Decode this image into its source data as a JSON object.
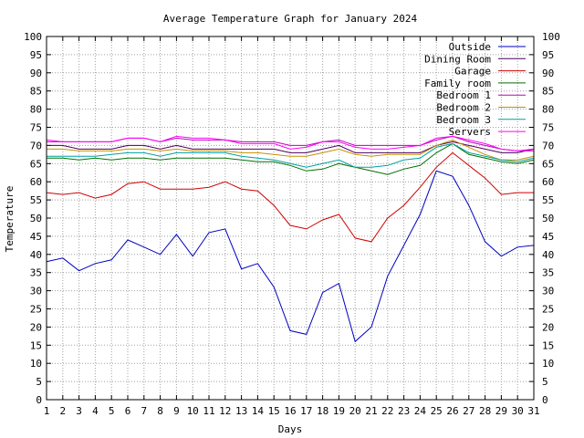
{
  "chart_data": {
    "type": "line",
    "title": "Average Temperature Graph for January 2024",
    "xlabel": "Days",
    "ylabel": "Temperature",
    "ylim": [
      0,
      100
    ],
    "xlim": [
      1,
      31
    ],
    "yticks": [
      0,
      5,
      10,
      15,
      20,
      25,
      30,
      35,
      40,
      45,
      50,
      55,
      60,
      65,
      70,
      75,
      80,
      85,
      90,
      95,
      100
    ],
    "x": [
      1,
      2,
      3,
      4,
      5,
      6,
      7,
      8,
      9,
      10,
      11,
      12,
      13,
      14,
      15,
      16,
      17,
      18,
      19,
      20,
      21,
      22,
      23,
      24,
      25,
      26,
      27,
      28,
      29,
      30,
      31
    ],
    "grid": true,
    "legend_position": "top-right",
    "series": [
      {
        "name": "Outside",
        "color": "#0000c0",
        "values": [
          38,
          39,
          35.5,
          37.5,
          38.5,
          44,
          42,
          40,
          45.5,
          39.5,
          46,
          47,
          36,
          37.5,
          31,
          19,
          18,
          29.5,
          32,
          16,
          20,
          34,
          42.5,
          51,
          63,
          61.5,
          53.5,
          43.5,
          39.5,
          42,
          42.5
        ]
      },
      {
        "name": "Dining Room",
        "color": "#4b0060",
        "values": [
          70,
          70,
          69,
          69,
          69,
          70,
          70,
          69,
          70,
          69,
          69,
          69,
          69,
          69,
          69,
          68,
          68,
          69,
          70,
          68,
          68,
          68,
          68,
          68,
          70,
          71,
          70,
          69,
          68,
          68,
          69
        ]
      },
      {
        "name": "Garage",
        "color": "#d00000",
        "values": [
          57,
          56.5,
          57,
          55.5,
          56.5,
          59.5,
          60,
          58,
          58,
          58,
          58.5,
          60,
          58,
          57.5,
          53.5,
          48,
          47,
          49.5,
          51,
          44.5,
          43.5,
          50,
          53.5,
          58.5,
          64,
          68,
          64.5,
          61,
          56.5,
          57,
          57
        ]
      },
      {
        "name": "Family room",
        "color": "#007000",
        "values": [
          66.5,
          66.5,
          66,
          66.5,
          66,
          66.5,
          66.5,
          66,
          66.5,
          66.5,
          66.5,
          66.5,
          66,
          65.5,
          65.5,
          64.5,
          63,
          63.5,
          65,
          64,
          63,
          62,
          63.5,
          64.5,
          68,
          70.5,
          67.5,
          66.5,
          65.5,
          65,
          66
        ]
      },
      {
        "name": "Bedroom 1",
        "color": "#c000c0",
        "values": [
          71,
          71,
          71,
          71,
          71,
          72,
          72,
          71,
          72,
          71.5,
          71.5,
          71.5,
          71,
          71,
          71,
          70,
          70,
          71,
          71.5,
          70,
          70,
          70,
          70,
          70,
          71.5,
          72.5,
          71,
          70,
          69,
          68.5,
          69
        ]
      },
      {
        "name": "Bedroom 2",
        "color": "#c89000",
        "values": [
          69,
          69,
          68.5,
          68.5,
          68.5,
          69,
          69,
          68.5,
          69,
          68.5,
          68.5,
          68.5,
          68,
          68,
          67.5,
          67,
          67,
          68,
          69,
          67.5,
          67,
          67.5,
          67.5,
          67.5,
          70,
          71.5,
          69.5,
          67.5,
          66,
          66,
          67
        ]
      },
      {
        "name": "Bedroom 3",
        "color": "#00a0a0",
        "values": [
          67,
          67,
          67,
          67,
          67.5,
          68,
          68,
          67,
          68,
          68,
          68,
          68,
          67,
          66.5,
          66,
          65,
          64,
          65,
          66,
          64,
          64,
          64.5,
          66,
          66.5,
          69.5,
          70.5,
          68,
          67,
          66,
          65.5,
          66.5
        ]
      },
      {
        "name": "Servers",
        "color": "#ff00ff",
        "values": [
          71.5,
          71,
          71,
          71,
          71,
          72,
          72,
          71,
          72.5,
          72,
          72,
          71.5,
          70.5,
          70.5,
          70.5,
          69,
          69.5,
          71,
          71,
          69.5,
          69,
          69,
          69.5,
          70,
          72,
          72.5,
          71.5,
          70.5,
          69,
          68.5,
          68.5
        ]
      }
    ]
  }
}
